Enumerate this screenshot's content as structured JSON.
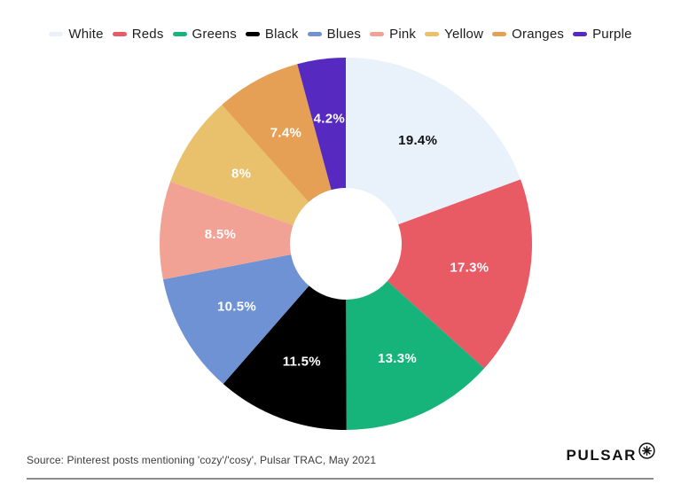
{
  "chart_data": {
    "type": "pie",
    "subtype": "donut",
    "title": "",
    "legend_position": "top",
    "direction": "clockwise",
    "start_angle_deg": 0,
    "categories": [
      "White",
      "Reds",
      "Greens",
      "Black",
      "Blues",
      "Pink",
      "Yellow",
      "Oranges",
      "Purple"
    ],
    "values": [
      19.4,
      17.3,
      13.3,
      11.5,
      10.5,
      8.5,
      8,
      7.4,
      4.2
    ],
    "labels": [
      "19.4%",
      "17.3%",
      "13.3%",
      "11.5%",
      "10.5%",
      "8.5%",
      "8%",
      "7.4%",
      "4.2%"
    ],
    "colors": [
      "#e9f1fb",
      "#e85a64",
      "#16b47b",
      "#000000",
      "#6e92d4",
      "#f2a294",
      "#e9c06c",
      "#e6a055",
      "#5629c0"
    ],
    "label_colors": [
      "#111111",
      "#ffffff",
      "#ffffff",
      "#ffffff",
      "#ffffff",
      "#ffffff",
      "#ffffff",
      "#ffffff",
      "#ffffff"
    ]
  },
  "footer": {
    "source": "Source: Pinterest posts mentioning 'cozy'/'cosy', Pulsar TRAC, May 2021",
    "brand": "PULSAR"
  }
}
